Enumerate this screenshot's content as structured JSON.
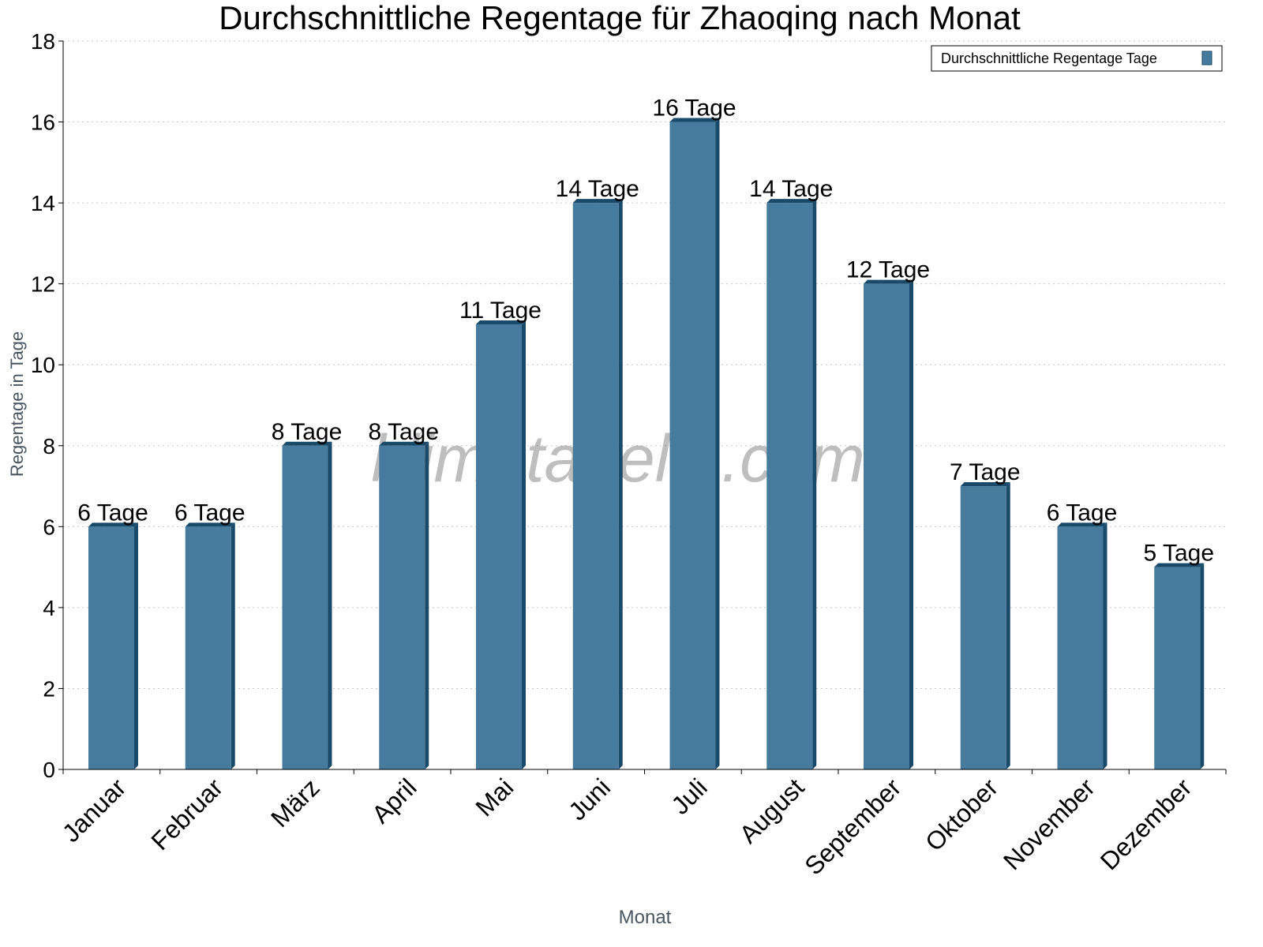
{
  "chart_data": {
    "type": "bar",
    "title": "Durchschnittliche Regentage für Zhaoqing nach Monat",
    "xlabel": "Monat",
    "ylabel": "Regentage in Tage",
    "categories": [
      "Januar",
      "Februar",
      "März",
      "April",
      "Mai",
      "Juni",
      "Juli",
      "August",
      "September",
      "Oktober",
      "November",
      "Dezember"
    ],
    "series": [
      {
        "name": "Durchschnittliche Regentage Tage",
        "values": [
          6,
          6,
          8,
          8,
          11,
          14,
          16,
          14,
          12,
          7,
          6,
          5
        ]
      }
    ],
    "data_labels": [
      "6 Tage",
      "6 Tage",
      "8 Tage",
      "8 Tage",
      "11 Tage",
      "14 Tage",
      "16 Tage",
      "14 Tage",
      "12 Tage",
      "7 Tage",
      "6 Tage",
      "5 Tage"
    ],
    "ylim": [
      0,
      18
    ],
    "yticks": [
      0,
      2,
      4,
      6,
      8,
      10,
      12,
      14,
      16,
      18
    ],
    "grid": true,
    "legend_position": "top-right",
    "colors": {
      "bar_front": "#477b9d",
      "bar_side": "#1a4a6a",
      "grid": "#c8c8c8"
    },
    "watermark": "klimatabelle.com"
  }
}
